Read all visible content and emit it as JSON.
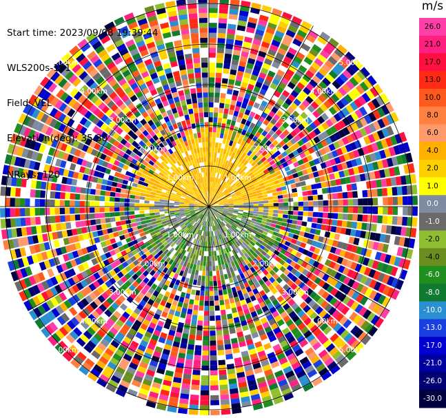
{
  "header": {
    "start_time": "Start time: 2023/09/08 19:39:44",
    "instrument": "WLS200s-181",
    "field": "Field: VEL",
    "elevation": "Elevation(deg): 35.30",
    "nrays": "NRays: 120"
  },
  "chart_data": {
    "type": "ppi",
    "field": "VEL",
    "unit": "m/s",
    "elevation_deg": 35.3,
    "n_rays": 120,
    "n_range_rings": 5,
    "range_ring_labels": [
      "1.00km",
      "2.00km",
      "3.00km",
      "4.00km",
      "5.00km"
    ],
    "colorbar": {
      "unit": "m/s",
      "levels": [
        26.0,
        21.0,
        17.0,
        13.0,
        10.0,
        8.0,
        6.0,
        4.0,
        2.0,
        1.0,
        0.0,
        -1.0,
        -2.0,
        -4.0,
        -6.0,
        -8.0,
        -10.0,
        -13.0,
        -17.0,
        -21.0,
        -26.0,
        -30.0
      ],
      "tick_labels": [
        "26.0",
        "21.0",
        "17.0",
        "13.0",
        "10.0",
        "8.0",
        "6.0",
        "4.0",
        "2.0",
        "1.0",
        "0.0",
        "-1.0",
        "-2.0",
        "-4.0",
        "-6.0",
        "-8.0",
        "-10.0",
        "-13.0",
        "-17.0",
        "-21.0",
        "-26.0",
        "-30.0"
      ],
      "colors": [
        "#ff3fa8",
        "#ff2080",
        "#ff1040",
        "#ff2a14",
        "#ff5a1e",
        "#ff8040",
        "#ff9a6a",
        "#ffb000",
        "#ffd000",
        "#ffff00",
        "#7f8ba0",
        "#6a6a6a",
        "#8fbf30",
        "#6a8f20",
        "#208f20",
        "#107a30",
        "#2a8fd0",
        "#1a3fe0",
        "#0000d0",
        "#0000a0",
        "#000070",
        "#000040"
      ]
    },
    "pattern": {
      "near_field_north_values": [
        "2.0",
        "4.0"
      ],
      "near_field_south_values": [
        "0.0",
        "-1.0",
        "-2.0",
        "-4.0",
        "-6.0"
      ],
      "far_field": "noise"
    }
  }
}
